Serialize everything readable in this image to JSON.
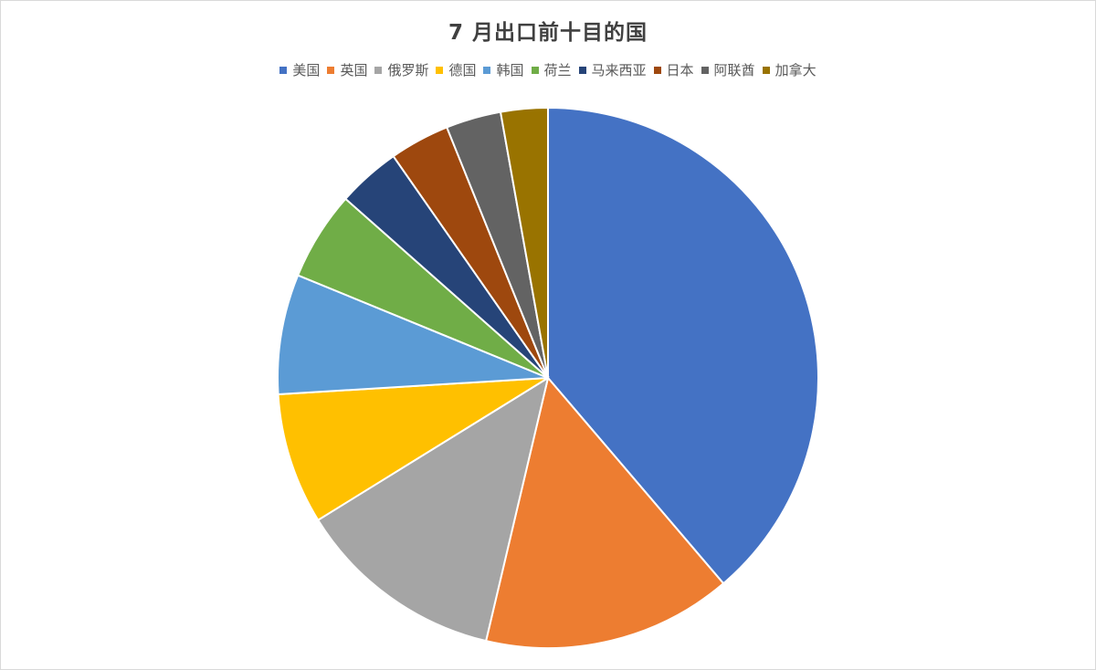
{
  "chart_data": {
    "type": "pie",
    "title": "7 月出口前十目的国",
    "legend_position": "top",
    "categories": [
      "美国",
      "英国",
      "俄罗斯",
      "德国",
      "韩国",
      "荷兰",
      "马来西亚",
      "日本",
      "阿联酋",
      "加拿大"
    ],
    "values": [
      40.0,
      15.4,
      12.9,
      8.1,
      7.4,
      5.5,
      3.9,
      3.7,
      3.4,
      2.9
    ],
    "colors": [
      "#4472C4",
      "#ED7D31",
      "#A5A5A5",
      "#FFC000",
      "#5B9BD5",
      "#70AD47",
      "#264478",
      "#9E480E",
      "#636363",
      "#997300"
    ],
    "start_angle_deg": 0,
    "direction": "clockwise"
  }
}
